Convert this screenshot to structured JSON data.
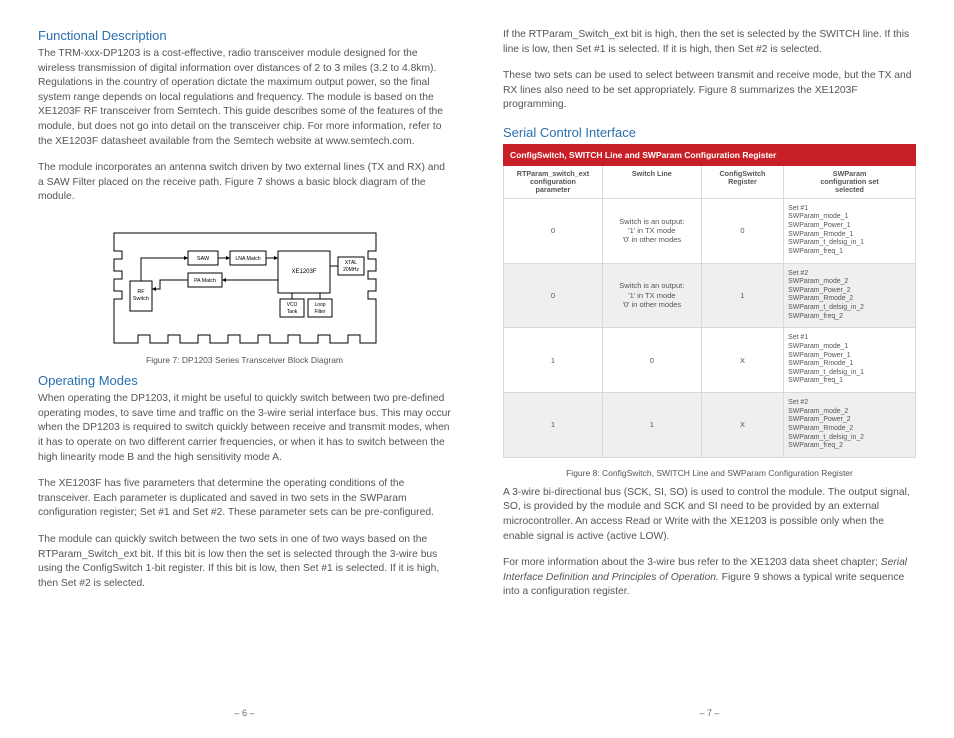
{
  "colors": {
    "heading": "#2a6faf",
    "banner_bg": "#c92027",
    "banner_text": "#ffffff",
    "body_text": "#555555",
    "border": "#d9d9d9",
    "alt_row": "#efefef"
  },
  "left": {
    "h1": "Functional Description",
    "p1": "The TRM-xxx-DP1203 is a cost-effective, radio transceiver module designed for the wireless transmission of digital information over distances of 2 to 3 miles (3.2 to 4.8km). Regulations in the country of operation dictate the maximum output power, so the final system range depends on local regulations and frequency.  The module is based on the XE1203F RF transceiver from Semtech. This guide describes some of the features of the module, but does not go into detail on the transceiver chip. For more information, refer to the XE1203F datasheet available from the Semtech website at www.semtech.com.",
    "p2": "The module incorporates an antenna switch driven by two external lines (TX and RX) and a SAW Filter placed on the receive path. Figure 7 shows a basic block diagram of the module.",
    "fig7_caption": "Figure 7: DP1203 Series Transceiver Block Diagram",
    "h2": "Operating Modes",
    "p3": "When operating the DP1203, it might be useful to quickly switch between two pre-defined operating modes, to save time and traffic on the 3-wire serial interface bus. This may occur when the DP1203 is required to switch quickly between receive and transmit modes, when it has to operate on two different carrier frequencies, or when it has to switch between the high linearity mode B and the high sensitivity mode A.",
    "p4": "The XE1203F has five parameters that determine the operating conditions of the transceiver. Each parameter is duplicated and saved in two sets in the SWParam configuration register; Set #1 and Set #2. These parameter sets can be pre-configured.",
    "p5": "The module can quickly switch between the two sets in one of two ways based on the RTParam_Switch_ext bit. If this bit is low then the set is selected through the 3-wire bus using the ConfigSwitch 1-bit register. If this bit is low, then Set #1 is selected. If it is high, then Set #2 is selected.",
    "pagenum": "– 6 –",
    "diagram": {
      "border_color": "#000000",
      "fill": "#ffffff",
      "nodes": {
        "rf_switch": "RF\nSwitch",
        "saw": "SAW",
        "lna_match": "LNA Match",
        "pa_match": "PA Match",
        "xe1203f": "XE1203F",
        "xtal": "XTAL\n20MHz",
        "vco": "VCO\nTank",
        "loop": "Loop\nFilter"
      }
    }
  },
  "right": {
    "p1": "If the RTParam_Switch_ext bit is high, then the set is selected by the SWITCH line. If this line is low, then Set #1 is selected. If it is high, then Set #2 is selected.",
    "p2": "These two sets can be used to select between transmit and receive mode, but the TX and RX lines also need to be set appropriately. Figure 8 summarizes the XE1203F programming.",
    "h1": "Serial Control Interface",
    "table": {
      "banner": "ConfigSwitch, SWITCH Line and SWParam Configuration Register",
      "headers": [
        "RTParam_switch_ext\nconfiguration\nparameter",
        "Switch Line",
        "ConfigSwitch\nRegister",
        "SWParam\nconfiguration set\nselected"
      ],
      "rows": [
        {
          "c0": "0",
          "c1": "Switch is an output:\n'1' in TX mode\n'0' in other modes",
          "c2": "0",
          "c3": "Set #1\nSWParam_mode_1\nSWParam_Power_1\nSWParam_Rmode_1\nSWParam_t_delsig_in_1\nSWParam_freq_1"
        },
        {
          "c0": "0",
          "c1": "Switch is an output:\n'1' in TX mode\n'0' in other modes",
          "c2": "1",
          "c3": "Set #2\nSWParam_mode_2\nSWParam_Power_2\nSWParam_Rmode_2\nSWParam_t_delsig_in_2\nSWParam_freq_2"
        },
        {
          "c0": "1",
          "c1": "0",
          "c2": "X",
          "c3": "Set #1\nSWParam_mode_1\nSWParam_Power_1\nSWParam_Rmode_1\nSWParam_t_delsig_in_1\nSWParam_freq_1"
        },
        {
          "c0": "1",
          "c1": "1",
          "c2": "X",
          "c3": "Set #2\nSWParam_mode_2\nSWParam_Power_2\nSWParam_Rmode_2\nSWParam_t_delsig_in_2\nSWParam_freq_2"
        }
      ]
    },
    "fig8_caption": "Figure 8: ConfigSwitch, SWITCH Line and SWParam Configuration Register",
    "p3a": "A 3-wire bi-directional bus (SCK, SI, SO) is used to control the module. The output signal, SO, is provided by the module and SCK and SI need to be provided by an external microcontroller. An access Read or Write with the XE1203 is possible only when the enable signal is active (active LOW).",
    "p4a": "For more information about the 3-wire bus refer to the XE1203 data sheet chapter; ",
    "p4b": "Serial Interface Definition and Principles of Operation.",
    "p4c": " Figure 9 shows a typical write sequence into a configuration register.",
    "pagenum": "– 7 –"
  }
}
